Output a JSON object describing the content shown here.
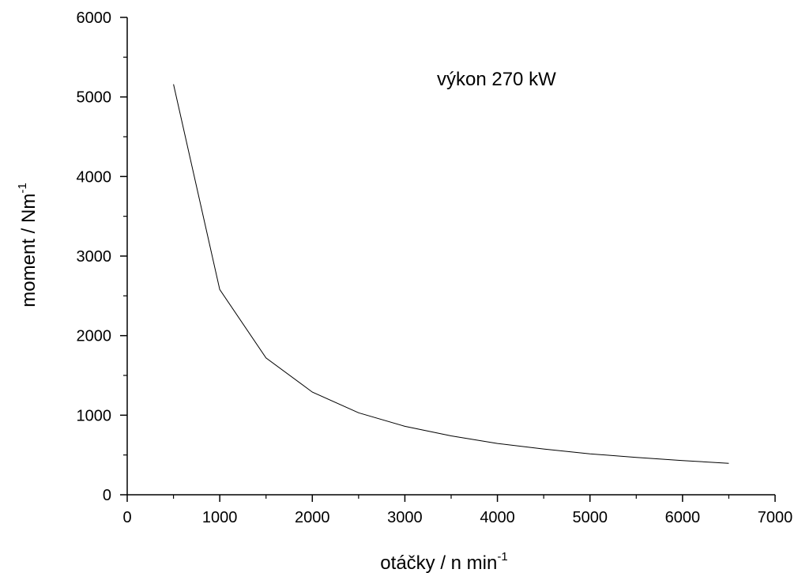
{
  "chart_data": {
    "type": "line",
    "title": "",
    "annotation": "výkon 270 kW",
    "xlabel": "otáčky / n min",
    "xlabel_superscript": "-1",
    "ylabel": "moment / Nm",
    "ylabel_superscript": "-1",
    "xlim": [
      0,
      7000
    ],
    "ylim": [
      0,
      6000
    ],
    "x_major_ticks": [
      0,
      1000,
      2000,
      3000,
      4000,
      5000,
      6000,
      7000
    ],
    "x_tick_labels": [
      "0",
      "1000",
      "2000",
      "3000",
      "4000",
      "5000",
      "6000",
      "7000"
    ],
    "x_minor_ticks": [
      500,
      1500,
      2500,
      3500,
      4500,
      5500,
      6500
    ],
    "y_major_ticks": [
      0,
      1000,
      2000,
      3000,
      4000,
      5000,
      6000
    ],
    "y_tick_labels": [
      "0",
      "1000",
      "2000",
      "3000",
      "4000",
      "5000",
      "6000"
    ],
    "y_minor_ticks": [
      500,
      1500,
      2500,
      3500,
      4500,
      5500
    ],
    "grid": false,
    "line_color": "#000000",
    "series": [
      {
        "x": [
          500,
          1000,
          1500,
          2000,
          2500,
          3000,
          3500,
          4000,
          4500,
          5000,
          5500,
          6000,
          6500
        ],
        "y": [
          5160,
          2580,
          1720,
          1290,
          1030,
          860,
          740,
          645,
          575,
          515,
          470,
          430,
          395
        ]
      }
    ]
  }
}
